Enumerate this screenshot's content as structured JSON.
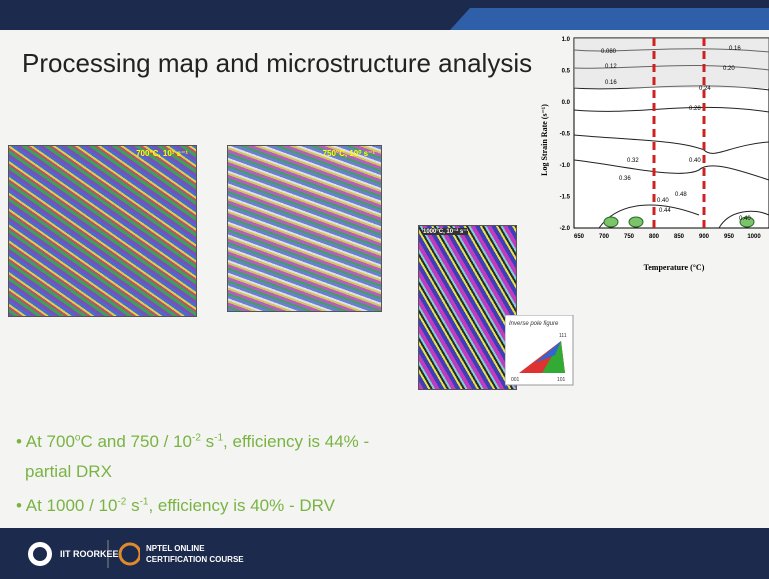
{
  "slide": {
    "title": "Processing map and microstructure analysis",
    "micrographs": [
      {
        "label": "700°C, 10¹ s⁻¹"
      },
      {
        "label": "750°C, 10⁰ s⁻¹"
      },
      {
        "label": "1000°C, 10⁻² s⁻¹"
      }
    ],
    "ipf_legend": {
      "title": "Inverse pole figure",
      "corners": [
        "001",
        "101",
        "111"
      ]
    },
    "processing_map": {
      "y_label": "Log Strain Rate (s⁻¹)",
      "x_label": "Temperature (°C)",
      "y_ticks": [
        "1.0",
        "0.5",
        "0.0",
        "-0.5",
        "-1.0",
        "-1.5",
        "-2.0"
      ],
      "x_ticks": [
        "650",
        "700",
        "750",
        "800",
        "850",
        "900",
        "950",
        "1000"
      ],
      "contour_labels": [
        "0.080",
        "0.12",
        "0.16",
        "0.16",
        "0.20",
        "0.24",
        "0.28",
        "0.32",
        "0.36",
        "0.40",
        "0.40",
        "0.44",
        "0.48",
        "0.40"
      ]
    },
    "bullets": [
      {
        "parts": [
          "At 700",
          "o",
          "C and 750 / 10",
          "-2",
          " s",
          "-1",
          ", efficiency is 44% -"
        ],
        "cont": "partial DRX"
      },
      {
        "parts": [
          "At 1000 / 10",
          "-2",
          " s",
          "-1",
          ", efficiency is 40% -  DRV"
        ]
      }
    ],
    "footer": {
      "institute": "IIT ROORKEE",
      "course_line1": "NPTEL ONLINE",
      "course_line2": "CERTIFICATION COURSE"
    }
  }
}
